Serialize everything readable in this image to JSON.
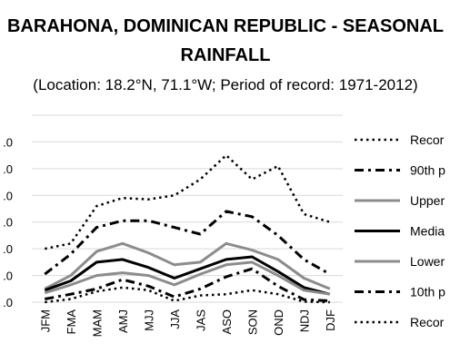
{
  "chart_data": {
    "type": "line",
    "title_line1": "BARAHONA, DOMINICAN REPUBLIC - SEASONAL",
    "title_line2": "RAINFALL",
    "subtitle": "(Location: 18.2°N, 71.1°W; Period of record: 1971-2012)",
    "categories": [
      "JFM",
      "FMA",
      "MAM",
      "AMJ",
      "MJJ",
      "JJA",
      "JAS",
      "ASO",
      "SON",
      "OND",
      "NDJ",
      "DJF"
    ],
    "ylim": [
      0,
      7
    ],
    "y_tick_labels": [
      ".0",
      ".0",
      ".0",
      ".0",
      ".0",
      ".0",
      ".0"
    ],
    "grid": true,
    "legend_position": "right",
    "series": [
      {
        "name": "Recor",
        "style": "dotted",
        "color": "#000000",
        "width": 2.5,
        "values": [
          2.0,
          2.2,
          3.6,
          3.9,
          3.85,
          4.0,
          4.6,
          5.5,
          4.6,
          5.1,
          3.3,
          3.0
        ]
      },
      {
        "name": "90th p",
        "style": "dashdot",
        "color": "#000000",
        "width": 3,
        "values": [
          1.05,
          1.8,
          2.8,
          3.05,
          3.05,
          2.8,
          2.55,
          3.4,
          3.2,
          2.5,
          1.6,
          1.05
        ]
      },
      {
        "name": "Upper",
        "style": "solid",
        "color": "#8c8c8c",
        "width": 3,
        "values": [
          0.5,
          1.0,
          1.9,
          2.2,
          1.85,
          1.4,
          1.5,
          2.2,
          1.95,
          1.6,
          0.9,
          0.5
        ]
      },
      {
        "name": "Media",
        "style": "solid",
        "color": "#000000",
        "width": 3,
        "values": [
          0.45,
          0.8,
          1.5,
          1.6,
          1.3,
          0.9,
          1.25,
          1.6,
          1.7,
          1.15,
          0.55,
          0.3
        ]
      },
      {
        "name": "Lower",
        "style": "solid",
        "color": "#8c8c8c",
        "width": 3,
        "values": [
          0.35,
          0.65,
          1.0,
          1.1,
          1.0,
          0.65,
          1.05,
          1.4,
          1.5,
          1.0,
          0.45,
          0.3
        ]
      },
      {
        "name": "10th p",
        "style": "dashdot",
        "color": "#000000",
        "width": 3,
        "values": [
          0.12,
          0.3,
          0.5,
          0.85,
          0.6,
          0.2,
          0.5,
          0.95,
          1.25,
          0.6,
          0.1,
          0.05
        ]
      },
      {
        "name": "Recor",
        "style": "dotted",
        "color": "#000000",
        "width": 2.5,
        "values": [
          0.0,
          0.12,
          0.4,
          0.55,
          0.45,
          0.05,
          0.25,
          0.3,
          0.45,
          0.3,
          0.02,
          0.0
        ]
      }
    ]
  }
}
